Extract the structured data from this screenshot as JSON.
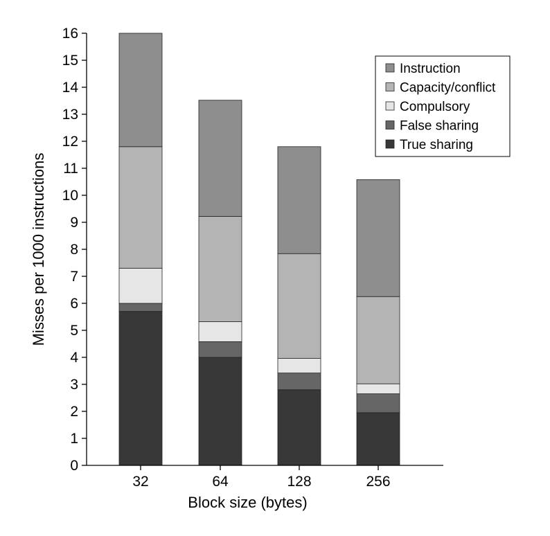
{
  "chart_data": {
    "type": "bar",
    "stacked": true,
    "categories": [
      "32",
      "64",
      "128",
      "256"
    ],
    "xlabel": "Block size (bytes)",
    "ylabel": "Misses per 1000 instructions",
    "ylim": [
      0,
      16
    ],
    "yticks": [
      "0",
      "1",
      "2",
      "3",
      "4",
      "5",
      "6",
      "7",
      "8",
      "9",
      "10",
      "11",
      "12",
      "13",
      "14",
      "15",
      "16"
    ],
    "grid": false,
    "legend_position": "top-right",
    "series": [
      {
        "name": "True sharing",
        "color": "#383838",
        "values": [
          5.7,
          4.0,
          2.8,
          1.95
        ]
      },
      {
        "name": "False sharing",
        "color": "#666666",
        "values": [
          0.3,
          0.58,
          0.62,
          0.7
        ]
      },
      {
        "name": "Compulsory",
        "color": "#e6e6e6",
        "values": [
          1.3,
          0.74,
          0.54,
          0.37
        ]
      },
      {
        "name": "Capacity/conflict",
        "color": "#b4b4b4",
        "values": [
          4.5,
          3.9,
          3.88,
          3.23
        ]
      },
      {
        "name": "Instruction",
        "color": "#8e8e8e",
        "values": [
          4.2,
          4.3,
          3.96,
          4.33
        ]
      }
    ],
    "legend_order": [
      "Instruction",
      "Capacity/conflict",
      "Compulsory",
      "False sharing",
      "True sharing"
    ]
  }
}
